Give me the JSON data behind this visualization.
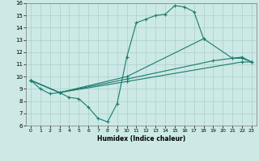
{
  "xlabel": "Humidex (Indice chaleur)",
  "xlim": [
    -0.5,
    23.5
  ],
  "ylim": [
    6,
    16
  ],
  "xticks": [
    0,
    1,
    2,
    3,
    4,
    5,
    6,
    7,
    8,
    9,
    10,
    11,
    12,
    13,
    14,
    15,
    16,
    17,
    18,
    19,
    20,
    21,
    22,
    23
  ],
  "yticks": [
    6,
    7,
    8,
    9,
    10,
    11,
    12,
    13,
    14,
    15,
    16
  ],
  "bg_color": "#cce9e5",
  "line_color": "#1a7a6e",
  "grid_color": "#aacfca",
  "line1_x": [
    0,
    1,
    2,
    3,
    4,
    5,
    6,
    7,
    8,
    9,
    10,
    11,
    12,
    13,
    14,
    15,
    16,
    17,
    18
  ],
  "line1_y": [
    9.7,
    9.0,
    8.6,
    8.7,
    8.3,
    8.2,
    7.5,
    6.6,
    6.3,
    7.8,
    11.6,
    14.4,
    14.7,
    15.0,
    15.1,
    15.8,
    15.7,
    15.3,
    13.1
  ],
  "line2_x": [
    0,
    3,
    10,
    18,
    21,
    22,
    23
  ],
  "line2_y": [
    9.7,
    8.7,
    10.0,
    13.1,
    11.5,
    11.6,
    11.2
  ],
  "line3_x": [
    0,
    3,
    10,
    19,
    21,
    22,
    23
  ],
  "line3_y": [
    9.7,
    8.7,
    9.8,
    11.3,
    11.5,
    11.5,
    11.2
  ],
  "line4_x": [
    0,
    3,
    10,
    22,
    23
  ],
  "line4_y": [
    9.7,
    8.7,
    9.6,
    11.2,
    11.2
  ]
}
